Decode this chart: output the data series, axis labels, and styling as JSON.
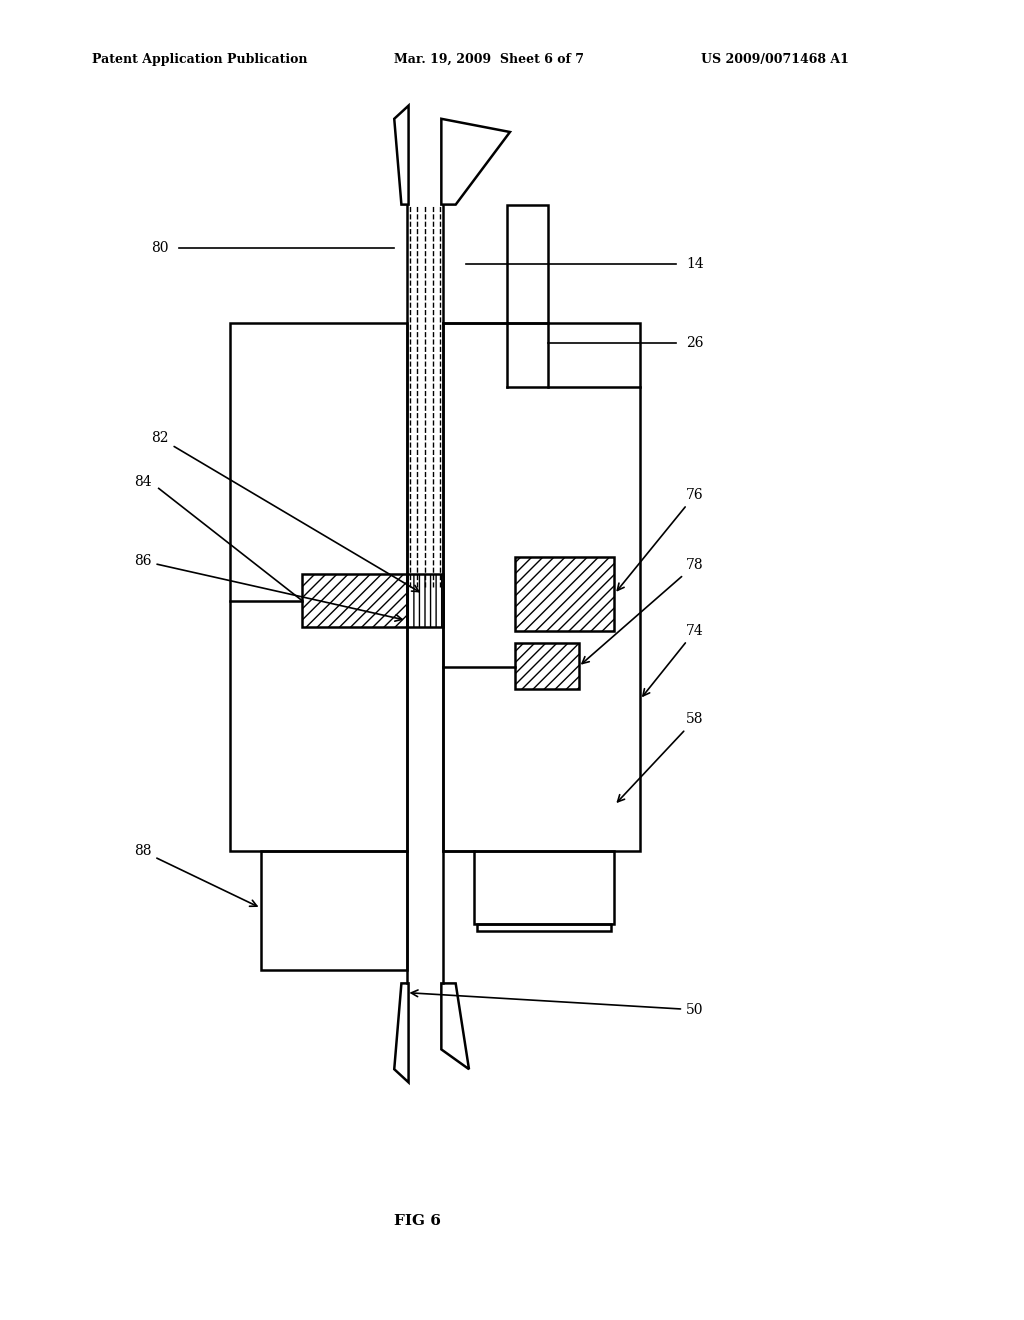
{
  "title_left": "Patent Application Publication",
  "title_mid": "Mar. 19, 2009  Sheet 6 of 7",
  "title_right": "US 2009/0071468 A1",
  "fig_label": "FIG 6",
  "bg_color": "#ffffff",
  "line_color": "#000000"
}
